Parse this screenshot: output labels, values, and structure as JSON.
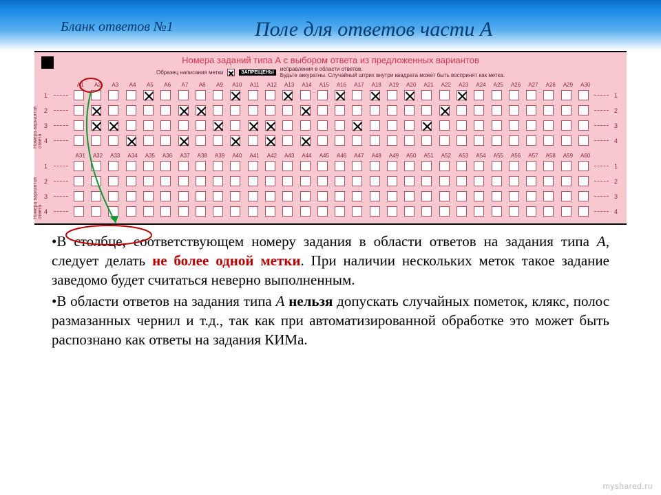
{
  "header": {
    "left": "Бланк ответов №1",
    "right": "Поле для ответов части А"
  },
  "form": {
    "title": "Номера заданий типа А с выбором ответа из предложенных вариантов",
    "sample_label": "Образец написания метки",
    "banned": "ЗАПРЕЩЕНЫ",
    "banned_tail": "исправления в области ответов.",
    "careful": "Будьте аккуратны. Случайный штрих внутри квадрата может быть воспринят как метка.",
    "side_label": "Номера вариантов ответа",
    "col_prefix": "A",
    "rows_top_marks": {
      "1": [
        5,
        10,
        13,
        16,
        18,
        20,
        23
      ],
      "2": [
        2,
        7,
        8,
        14,
        22
      ],
      "3": [
        2,
        3,
        9,
        11,
        12,
        17,
        21
      ],
      "4": [
        4,
        7,
        10,
        12,
        14
      ]
    },
    "colors": {
      "form_bg": "#f7c8d0",
      "title_color": "#d63050",
      "box_border": "#b05060",
      "text_muted": "#8a2838"
    }
  },
  "annotation": {
    "ellipse_stroke": "#c00000",
    "arrow_stroke": "#00a030"
  },
  "body_text": {
    "p1_a": "В столбце, соответствующем номеру задания в области ответов на задания типа ",
    "p1_i": "А",
    "p1_b": ", следует делать ",
    "p1_red": "не более одной метки",
    "p1_c": ". При наличии нескольких меток такое задание заведомо будет считаться неверно выполненным.",
    "p2_a": "В области ответов на задания типа ",
    "p2_i": "А",
    "p2_b": " ",
    "p2_bold": "нельзя",
    "p2_c": " допускать случайных пометок, клякс, полос размазанных чернил и т.д., так как при автоматизированной обработке это может быть распознано как ответы на задания КИМа."
  },
  "watermark": "myshared.ru"
}
